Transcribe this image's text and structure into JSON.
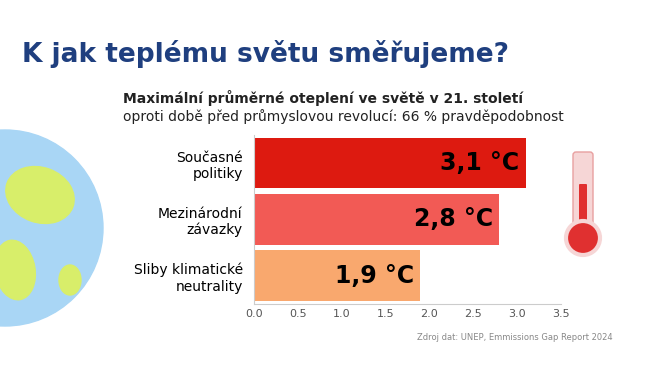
{
  "chart_data": {
    "type": "bar",
    "orientation": "horizontal",
    "title": "K jak teplému světu směřujeme?",
    "subtitle": "Maximální průměrné oteplení ve světě v 21. století",
    "annotations": [
      "oproti době před průmyslovou revolucí: 66 % pravděpodobnost",
      "Zdroj dat: UNEP, Emmissions Gap Report 2024"
    ],
    "categories": [
      "Současné politiky",
      "Mezinárodní závazky",
      "Sliby klimatické neutrality"
    ],
    "values": [
      3.1,
      2.8,
      1.9
    ],
    "value_labels": [
      "3,1 °C",
      "2,8 °C",
      "1,9 °C"
    ],
    "colors": [
      "#dd1a10",
      "#f25a55",
      "#f9a86e"
    ],
    "data_labels": true,
    "grid": false,
    "xlim": [
      0,
      3.5
    ],
    "xticks": [
      0.0,
      0.5,
      1.0,
      1.5,
      2.0,
      2.5,
      3.0,
      3.5
    ]
  }
}
